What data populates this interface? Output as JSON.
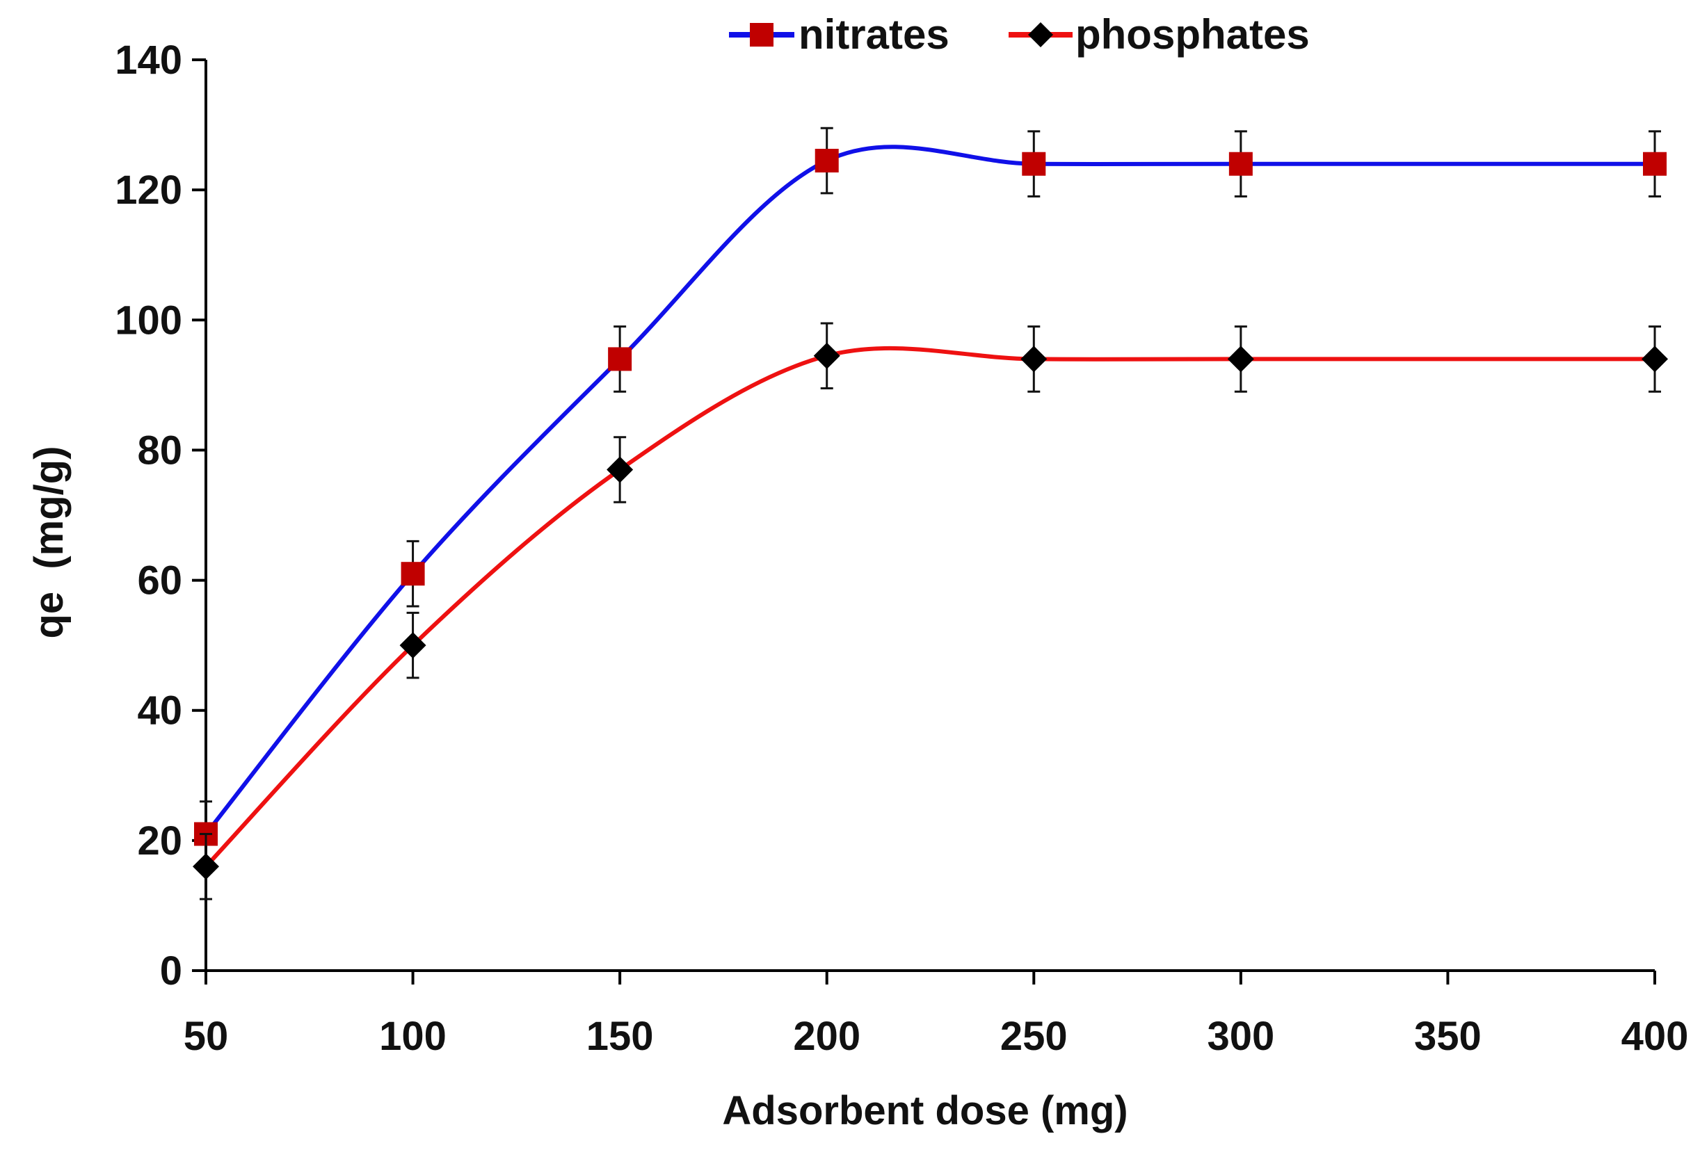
{
  "chart_data": {
    "type": "line",
    "title": "",
    "xlabel": "Adsorbent dose (mg)",
    "ylabel": "qe  (mg/g)",
    "x_tick_labels": [
      "50",
      "100",
      "150",
      "200",
      "250",
      "300",
      "350",
      "400"
    ],
    "y_ticks": [
      0,
      20,
      40,
      60,
      80,
      100,
      120,
      140
    ],
    "y_tick_labels": [
      "0",
      "20",
      "40",
      "60",
      "80",
      "100",
      "120",
      "140"
    ],
    "ylim": [
      0,
      140
    ],
    "legend_position": "top",
    "series": [
      {
        "name": "nitrates",
        "line_color": "#1010e8",
        "marker": "square",
        "marker_color": "#c00000",
        "x_index": [
          0,
          1,
          2,
          3,
          4,
          5,
          7
        ],
        "x_label": [
          "50",
          "100",
          "150",
          "200",
          "250",
          "300",
          "400"
        ],
        "values": [
          21,
          61,
          94,
          124.5,
          124,
          124,
          124
        ],
        "error": [
          5,
          5,
          5,
          5,
          5,
          5,
          5
        ]
      },
      {
        "name": "phosphates",
        "line_color": "#ee1111",
        "marker": "diamond",
        "marker_color": "#000000",
        "x_index": [
          0,
          1,
          2,
          3,
          4,
          5,
          7
        ],
        "x_label": [
          "50",
          "100",
          "150",
          "200",
          "250",
          "300",
          "400"
        ],
        "values": [
          16,
          50,
          77,
          94.5,
          94,
          94,
          94
        ],
        "error": [
          5,
          5,
          5,
          5,
          5,
          5,
          5
        ]
      }
    ]
  }
}
